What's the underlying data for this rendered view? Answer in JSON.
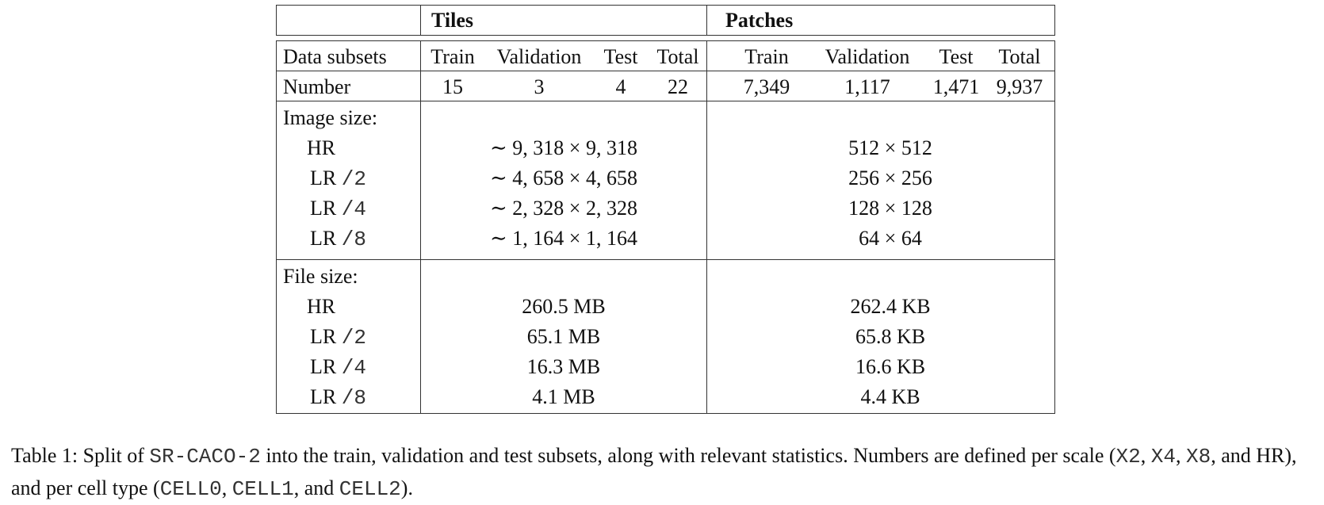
{
  "header": {
    "tiles": "Tiles",
    "patches": "Patches"
  },
  "subsets_row": {
    "label": "Data subsets",
    "tiles": [
      "Train",
      "Validation",
      "Test",
      "Total"
    ],
    "patches": [
      "Train",
      "Validation",
      "Test",
      "Total"
    ]
  },
  "number_row": {
    "label": "Number",
    "tiles": [
      "15",
      "3",
      "4",
      "22"
    ],
    "patches": [
      "7,349",
      "1,117",
      "1,471",
      "9,937"
    ]
  },
  "image_size": {
    "title": "Image size:",
    "rows": [
      {
        "label": "HR",
        "scale": "",
        "tiles": "∼ 9, 318 × 9, 318",
        "patches": "512 × 512"
      },
      {
        "label": "LR",
        "scale": "/2",
        "tiles": "∼ 4, 658 × 4, 658",
        "patches": "256 × 256"
      },
      {
        "label": "LR",
        "scale": "/4",
        "tiles": "∼ 2, 328 × 2, 328",
        "patches": "128 × 128"
      },
      {
        "label": "LR",
        "scale": "/8",
        "tiles": "∼ 1, 164 × 1, 164",
        "patches": "64 × 64"
      }
    ]
  },
  "file_size": {
    "title": "File size:",
    "rows": [
      {
        "label": "HR",
        "scale": "",
        "tiles": "260.5 MB",
        "patches": "262.4 KB"
      },
      {
        "label": "LR",
        "scale": "/2",
        "tiles": "65.1 MB",
        "patches": "65.8 KB"
      },
      {
        "label": "LR",
        "scale": "/4",
        "tiles": "16.3 MB",
        "patches": "16.6 KB"
      },
      {
        "label": "LR",
        "scale": "/8",
        "tiles": "4.1 MB",
        "patches": "4.4 KB"
      }
    ]
  },
  "caption": {
    "p1": "Table 1: Split of ",
    "code1": "SR-CACO-2",
    "p2": " into the train, validation and test subsets, along with relevant statistics. Numbers are defined per scale (",
    "code2": "X2",
    "p3": ", ",
    "code3": "X4",
    "p4": ", ",
    "code4": "X8",
    "p5": ", and HR), and per cell type (",
    "code5": "CELL0",
    "p6": ", ",
    "code6": "CELL1",
    "p7": ", and ",
    "code7": "CELL2",
    "p8": ")."
  }
}
